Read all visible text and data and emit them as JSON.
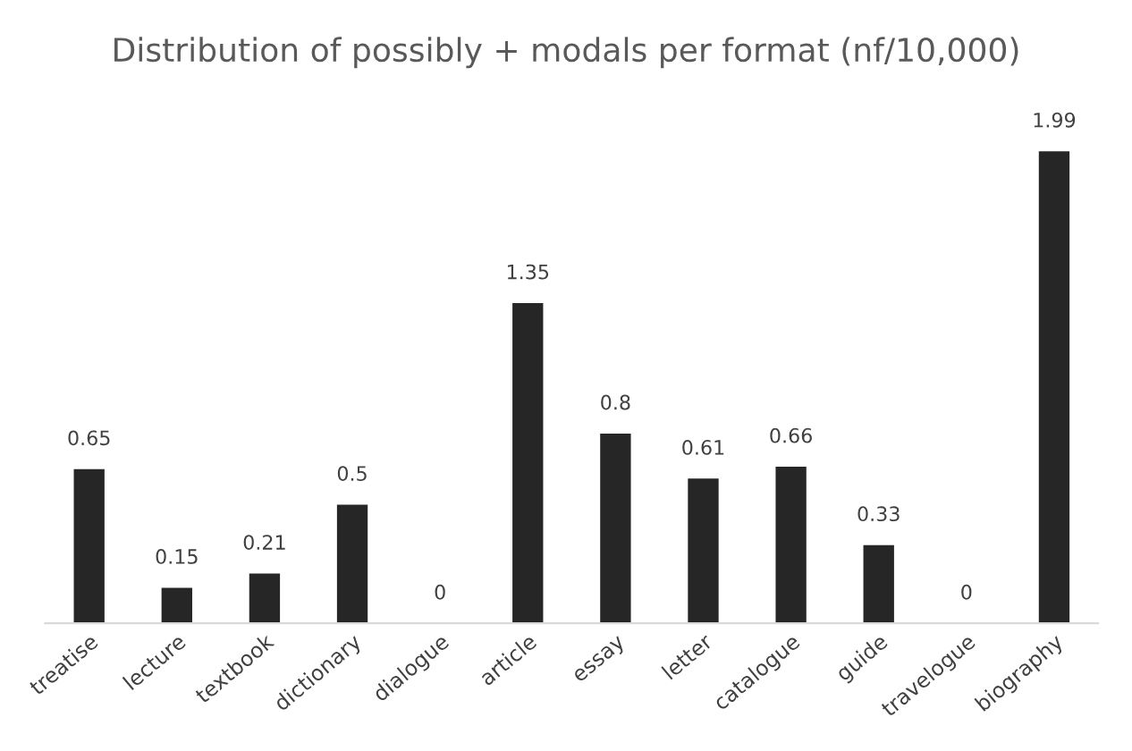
{
  "chart_data": {
    "type": "bar",
    "title": "Distribution of possibly + modals per format (nf/10,000)",
    "categories": [
      "treatise",
      "lecture",
      "textbook",
      "dictionary",
      "dialogue",
      "article",
      "essay",
      "letter",
      "catalogue",
      "guide",
      "travelogue",
      "biography"
    ],
    "values": [
      0.65,
      0.15,
      0.21,
      0.5,
      0,
      1.35,
      0.8,
      0.61,
      0.66,
      0.33,
      0,
      1.99
    ],
    "color": "#262626",
    "data_labels": true,
    "grid": false,
    "legend": false
  }
}
